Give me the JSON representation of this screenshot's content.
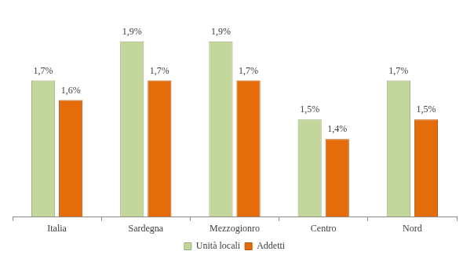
{
  "chart_data": {
    "type": "bar",
    "categories": [
      "Italia",
      "Sardegna",
      "Mezzogionro",
      "Centro",
      "Nord"
    ],
    "series": [
      {
        "name": "Unità locali",
        "color": "#c3d69b",
        "values": [
          1.7,
          1.9,
          1.9,
          1.5,
          1.7
        ],
        "value_labels": [
          "1,7%",
          "1,9%",
          "1,9%",
          "1,5%",
          "1,7%"
        ]
      },
      {
        "name": "Addetti",
        "color": "#e46c0a",
        "values": [
          1.6,
          1.7,
          1.7,
          1.4,
          1.5
        ],
        "value_labels": [
          "1,6%",
          "1,7%",
          "1,7%",
          "1,4%",
          "1,5%"
        ]
      }
    ],
    "ylim": [
      1,
      2
    ],
    "yticks": [
      1,
      2
    ],
    "grid": false,
    "legend": "bottom",
    "data_labels": true,
    "tick_labels": "x"
  }
}
